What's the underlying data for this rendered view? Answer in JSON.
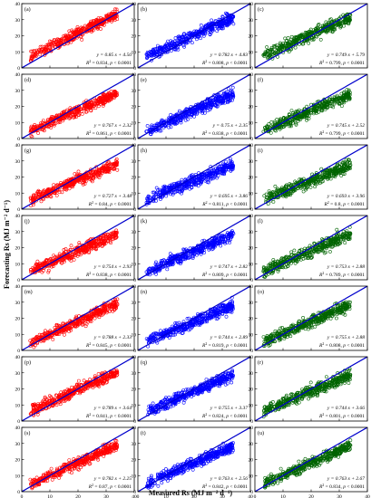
{
  "figure": {
    "ylabel": "Forecasting Rs (MJ m⁻² d⁻¹)",
    "xlabel": "Measured Rs (MJ m⁻² d⁻¹)",
    "axis_ticks": [
      "0",
      "10",
      "20",
      "30",
      "40"
    ],
    "colors": {
      "col1": "#ff0000",
      "col2": "#0000ff",
      "col3": "#006400",
      "fit_line": "#0000cc"
    }
  },
  "chart_data": [
    {
      "type": "scatter",
      "panel": "(a)",
      "color": "#ff0000",
      "equation": "y = 0.85 x + 4.56",
      "r2": "0.834",
      "p": "< 0.0001",
      "slope": 0.85,
      "intercept": 4.56,
      "xlim": [
        0,
        40
      ],
      "ylim": [
        0,
        40
      ]
    },
    {
      "type": "scatter",
      "panel": "(b)",
      "color": "#0000ff",
      "equation": "y = 0.782 x + 4.83",
      "r2": "0.808",
      "p": "< 0.0001",
      "slope": 0.782,
      "intercept": 4.83,
      "xlim": [
        0,
        40
      ],
      "ylim": [
        0,
        40
      ]
    },
    {
      "type": "scatter",
      "panel": "(c)",
      "color": "#006400",
      "equation": "y = 0.749 x + 5.79",
      "r2": "0.799",
      "p": "< 0.0001",
      "slope": 0.749,
      "intercept": 5.79,
      "xlim": [
        0,
        40
      ],
      "ylim": [
        0,
        40
      ]
    },
    {
      "type": "scatter",
      "panel": "(d)",
      "color": "#ff0000",
      "equation": "y = 0.767 x + 2.32",
      "r2": "0.861",
      "p": "< 0.0001",
      "slope": 0.767,
      "intercept": 2.32,
      "xlim": [
        0,
        40
      ],
      "ylim": [
        0,
        40
      ]
    },
    {
      "type": "scatter",
      "panel": "(e)",
      "color": "#0000ff",
      "equation": "y = 0.75 x + 2.35",
      "r2": "0.838",
      "p": "< 0.0001",
      "slope": 0.75,
      "intercept": 2.35,
      "xlim": [
        0,
        40
      ],
      "ylim": [
        0,
        40
      ]
    },
    {
      "type": "scatter",
      "panel": "(f)",
      "color": "#006400",
      "equation": "y = 0.745 x + 2.52",
      "r2": "0.799",
      "p": "< 0.0001",
      "slope": 0.745,
      "intercept": 2.52,
      "xlim": [
        0,
        40
      ],
      "ylim": [
        0,
        40
      ]
    },
    {
      "type": "scatter",
      "panel": "(g)",
      "color": "#ff0000",
      "equation": "y = 0.727 x + 3.48",
      "r2": "0.84",
      "p": "< 0.0001",
      "slope": 0.727,
      "intercept": 3.48,
      "xlim": [
        0,
        40
      ],
      "ylim": [
        0,
        40
      ]
    },
    {
      "type": "scatter",
      "panel": "(h)",
      "color": "#0000ff",
      "equation": "y = 0.695 x + 3.86",
      "r2": "0.811",
      "p": "< 0.0001",
      "slope": 0.695,
      "intercept": 3.86,
      "xlim": [
        0,
        40
      ],
      "ylim": [
        0,
        40
      ]
    },
    {
      "type": "scatter",
      "panel": "(i)",
      "color": "#006400",
      "equation": "y = 0.693 x + 3.96",
      "r2": "0.8",
      "p": "< 0.0001",
      "slope": 0.693,
      "intercept": 3.96,
      "xlim": [
        0,
        40
      ],
      "ylim": [
        0,
        40
      ]
    },
    {
      "type": "scatter",
      "panel": "(j)",
      "color": "#ff0000",
      "equation": "y = 0.754 x + 2.93",
      "r2": "0.838",
      "p": "< 0.0001",
      "slope": 0.754,
      "intercept": 2.93,
      "xlim": [
        0,
        40
      ],
      "ylim": [
        0,
        40
      ]
    },
    {
      "type": "scatter",
      "panel": "(k)",
      "color": "#0000ff",
      "equation": "y = 0.747 x + 2.82",
      "r2": "0.809",
      "p": "< 0.0001",
      "slope": 0.747,
      "intercept": 2.82,
      "xlim": [
        0,
        40
      ],
      "ylim": [
        0,
        40
      ]
    },
    {
      "type": "scatter",
      "panel": "(l)",
      "color": "#006400",
      "equation": "y = 0.753 x + 2.88",
      "r2": "0.789",
      "p": "< 0.0001",
      "slope": 0.753,
      "intercept": 2.88,
      "xlim": [
        0,
        40
      ],
      "ylim": [
        0,
        40
      ]
    },
    {
      "type": "scatter",
      "panel": "(m)",
      "color": "#ff0000",
      "equation": "y = 0.788 x + 2.33",
      "r2": "0.845",
      "p": "< 0.0001",
      "slope": 0.788,
      "intercept": 2.33,
      "xlim": [
        0,
        40
      ],
      "ylim": [
        0,
        40
      ]
    },
    {
      "type": "scatter",
      "panel": "(n)",
      "color": "#0000ff",
      "equation": "y = 0.744 x + 2.89",
      "r2": "0.819",
      "p": "< 0.0001",
      "slope": 0.744,
      "intercept": 2.89,
      "xlim": [
        0,
        40
      ],
      "ylim": [
        0,
        40
      ]
    },
    {
      "type": "scatter",
      "panel": "(o)",
      "color": "#006400",
      "equation": "y = 0.755 x + 2.88",
      "r2": "0.808",
      "p": "< 0.0001",
      "slope": 0.755,
      "intercept": 2.88,
      "xlim": [
        0,
        40
      ],
      "ylim": [
        0,
        40
      ]
    },
    {
      "type": "scatter",
      "panel": "(p)",
      "color": "#ff0000",
      "equation": "y = 0.789 x + 3.64",
      "r2": "0.841",
      "p": "< 0.0001",
      "slope": 0.789,
      "intercept": 3.64,
      "xlim": [
        0,
        40
      ],
      "ylim": [
        0,
        40
      ]
    },
    {
      "type": "scatter",
      "panel": "(q)",
      "color": "#0000ff",
      "equation": "y = 0.755 x + 3.37",
      "r2": "0.824",
      "p": "< 0.0001",
      "slope": 0.755,
      "intercept": 3.37,
      "xlim": [
        0,
        40
      ],
      "ylim": [
        0,
        40
      ]
    },
    {
      "type": "scatter",
      "panel": "(r)",
      "color": "#006400",
      "equation": "y = 0.744 x + 3.66",
      "r2": "0.801",
      "p": "< 0.0001",
      "slope": 0.744,
      "intercept": 3.66,
      "xlim": [
        0,
        40
      ],
      "ylim": [
        0,
        40
      ]
    },
    {
      "type": "scatter",
      "panel": "(s)",
      "color": "#ff0000",
      "equation": "y = 0.782 x + 2.25",
      "r2": "0.87",
      "p": "< 0.0001",
      "slope": 0.782,
      "intercept": 2.25,
      "xlim": [
        0,
        40
      ],
      "ylim": [
        0,
        40
      ]
    },
    {
      "type": "scatter",
      "panel": "(t)",
      "color": "#0000ff",
      "equation": "y = 0.763 x + 2.56",
      "r2": "0.842",
      "p": "< 0.0001",
      "slope": 0.763,
      "intercept": 2.56,
      "xlim": [
        0,
        40
      ],
      "ylim": [
        0,
        40
      ]
    },
    {
      "type": "scatter",
      "panel": "(u)",
      "color": "#006400",
      "equation": "y = 0.763 x + 2.67",
      "r2": "0.834",
      "p": "< 0.0001",
      "slope": 0.763,
      "intercept": 2.67,
      "xlim": [
        0,
        40
      ],
      "ylim": [
        0,
        40
      ]
    }
  ]
}
